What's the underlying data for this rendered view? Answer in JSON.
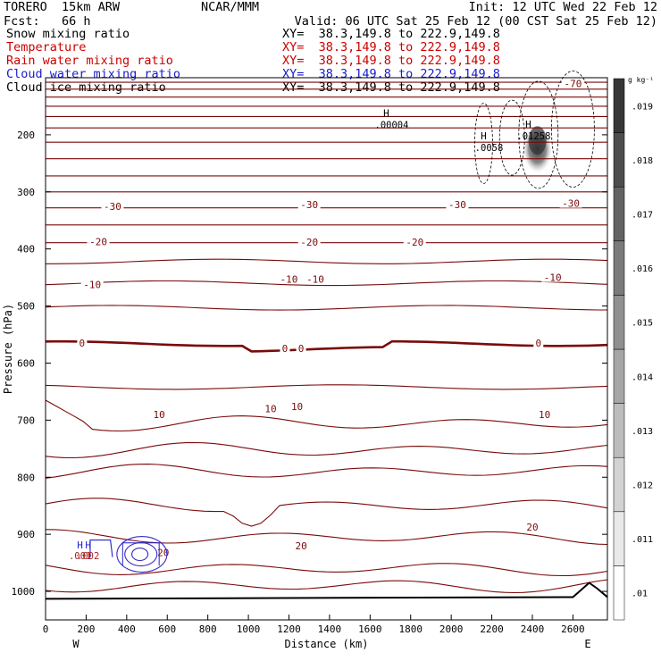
{
  "header": {
    "model": "TORERO  15km ARW",
    "center": "NCAR/MMM",
    "init": "Init: 12 UTC Wed 22 Feb 12",
    "fcst": "Fcst:   66 h",
    "valid": "Valid: 06 UTC Sat 25 Feb 12 (00 CST Sat 25 Feb 12)",
    "fields": [
      {
        "label": "Snow mixing ratio",
        "xy": "XY=  38.3,149.8 to 222.9,149.8",
        "color": "#000000",
        "xy_color": "#000000"
      },
      {
        "label": "Temperature",
        "xy": "XY=  38.3,149.8 to 222.9,149.8",
        "color": "#cc0000",
        "xy_color": "#cc0000"
      },
      {
        "label": "Rain water mixing ratio",
        "xy": "XY=  38.3,149.8 to 222.9,149.8",
        "color": "#cc0000",
        "xy_color": "#cc0000"
      },
      {
        "label": "Cloud water mixing ratio",
        "xy": "XY=  38.3,149.8 to 222.9,149.8",
        "color": "#1a1acc",
        "xy_color": "#1a1acc"
      },
      {
        "label": "Cloud ice mixing ratio",
        "xy": "XY=  38.3,149.8 to 222.9,149.8",
        "color": "#000000",
        "xy_color": "#000000"
      }
    ]
  },
  "chart_data": {
    "type": "contour",
    "xlabel": "Distance (km)",
    "ylabel": "Pressure (hPa)",
    "xlim": [
      0,
      2770
    ],
    "ylim": [
      100,
      1050
    ],
    "x_ticks": [
      0,
      200,
      400,
      600,
      800,
      1000,
      1200,
      1400,
      1600,
      1800,
      2000,
      2200,
      2400,
      2600
    ],
    "y_ticks": [
      200,
      300,
      400,
      500,
      600,
      700,
      800,
      900,
      1000
    ],
    "west_label": "W",
    "east_label": "E",
    "colorbar": {
      "unit": "g kg⁻¹",
      "tick_labels": [
        ".01",
        ".011",
        ".012",
        ".013",
        ".014",
        ".015",
        ".016",
        ".017",
        ".018",
        ".019"
      ],
      "values": [
        0.01,
        0.011,
        0.012,
        0.013,
        0.014,
        0.015,
        0.016,
        0.017,
        0.018,
        0.019
      ]
    },
    "temperature_contours_celsius": [
      {
        "level": -70,
        "labels": [
          {
            "x": 2600,
            "p": 110,
            "text": "-70"
          }
        ]
      },
      {
        "level": -60,
        "labels": []
      },
      {
        "level": -50,
        "labels": []
      },
      {
        "level": -40,
        "labels": []
      },
      {
        "level": -30,
        "labels": [
          {
            "x": 330,
            "p": 325,
            "text": "-30"
          },
          {
            "x": 1300,
            "p": 322,
            "text": "-30"
          },
          {
            "x": 2030,
            "p": 322,
            "text": "-30"
          },
          {
            "x": 2590,
            "p": 320,
            "text": "-30"
          }
        ]
      },
      {
        "level": -20,
        "labels": [
          {
            "x": 260,
            "p": 387,
            "text": "-20"
          },
          {
            "x": 1300,
            "p": 388,
            "text": "-20"
          },
          {
            "x": 1820,
            "p": 388,
            "text": "-20"
          }
        ]
      },
      {
        "level": -10,
        "labels": [
          {
            "x": 230,
            "p": 462,
            "text": "-10"
          },
          {
            "x": 1200,
            "p": 453,
            "text": "-10"
          },
          {
            "x": 1330,
            "p": 453,
            "text": "-10"
          },
          {
            "x": 2500,
            "p": 450,
            "text": "-10"
          }
        ]
      },
      {
        "level": 0,
        "labels": [
          {
            "x": 180,
            "p": 565,
            "text": "0"
          },
          {
            "x": 1180,
            "p": 574,
            "text": "0"
          },
          {
            "x": 1260,
            "p": 574,
            "text": "0"
          },
          {
            "x": 2430,
            "p": 565,
            "text": "0"
          }
        ]
      },
      {
        "level": 10,
        "labels": [
          {
            "x": 560,
            "p": 690,
            "text": "10"
          },
          {
            "x": 1110,
            "p": 680,
            "text": "10"
          },
          {
            "x": 1240,
            "p": 676,
            "text": "10"
          },
          {
            "x": 2460,
            "p": 690,
            "text": "10"
          }
        ]
      },
      {
        "level": 20,
        "labels": [
          {
            "x": 1260,
            "p": 920,
            "text": "20"
          },
          {
            "x": 2400,
            "p": 887,
            "text": "20"
          },
          {
            "x": 580,
            "p": 932,
            "text": "20"
          }
        ]
      }
    ],
    "snow_maxima": [
      {
        "x": 1680,
        "p": 168,
        "label": "H",
        "value": ".00004"
      },
      {
        "x": 2160,
        "p": 208,
        "label": "H",
        "value": ".0058"
      },
      {
        "x": 2380,
        "p": 188,
        "label": "H",
        "value": ".01258"
      }
    ],
    "cloud_water_maxima": [
      {
        "x": 170,
        "p": 925,
        "label": "H",
        "value": ".001"
      },
      {
        "x": 210,
        "p": 925,
        "label": "H",
        "value": ".002"
      }
    ],
    "max_shaded_snow": 0.0126
  }
}
